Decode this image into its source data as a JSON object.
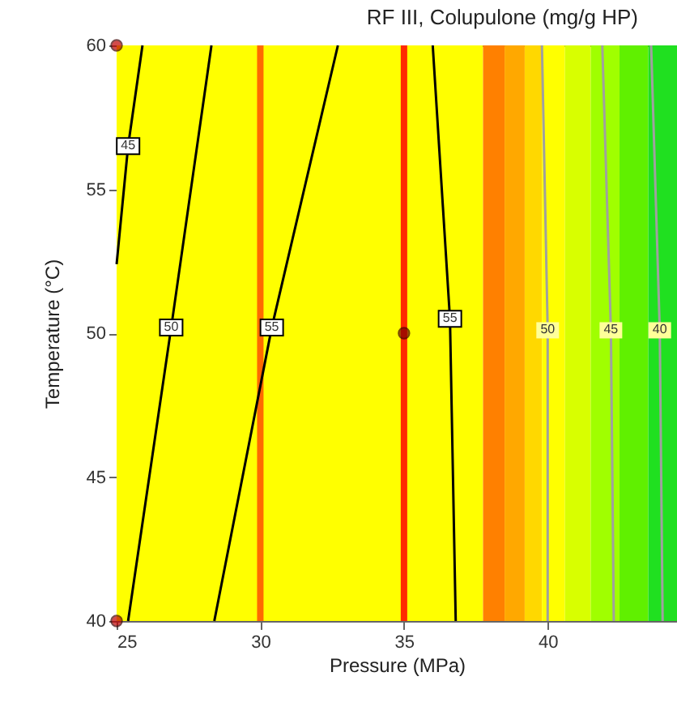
{
  "chart_data": {
    "type": "line",
    "title": "RF III, Colupulone (mg/g HP)",
    "xlabel": "Pressure (MPa)",
    "ylabel": "Temperature (°C)",
    "xlim": [
      25,
      44.5
    ],
    "xticks": [
      25,
      30,
      35,
      40
    ],
    "ylim": [
      40,
      60
    ],
    "yticks": [
      40,
      45,
      50,
      55,
      60
    ],
    "grid": false,
    "marker": "none",
    "line_style": "solid",
    "bands": [
      {
        "axis": "x",
        "from": 25,
        "to": 37.75,
        "color": "#ffff00"
      },
      {
        "axis": "x",
        "from": 37.75,
        "to": 38.5,
        "color": "#ff8000"
      },
      {
        "axis": "x",
        "from": 38.5,
        "to": 39.2,
        "color": "#ffa800"
      },
      {
        "axis": "x",
        "from": 39.2,
        "to": 39.8,
        "color": "#ffd800"
      },
      {
        "axis": "x",
        "from": 39.8,
        "to": 40.6,
        "color": "#ffff00"
      },
      {
        "axis": "x",
        "from": 40.6,
        "to": 41.5,
        "color": "#d8ff00"
      },
      {
        "axis": "x",
        "from": 41.5,
        "to": 42.5,
        "color": "#a0ff00"
      },
      {
        "axis": "x",
        "from": 42.5,
        "to": 43.5,
        "color": "#60f000"
      },
      {
        "axis": "x",
        "from": 43.5,
        "to": 44.5,
        "color": "#20e020"
      }
    ],
    "ref_lines": [
      {
        "axis": "x",
        "value": 30,
        "color": "#ff6a00"
      },
      {
        "axis": "x",
        "value": 35,
        "color": "#ff2a00"
      }
    ],
    "series": [
      {
        "name": "45",
        "color": "#000000",
        "x": [
          25,
          25.4,
          25.9
        ],
        "values": [
          52.4,
          56.5,
          60
        ]
      },
      {
        "name": "50",
        "color": "#000000",
        "x": [
          25.4,
          26.9,
          28.3
        ],
        "values": [
          40,
          50.2,
          60
        ]
      },
      {
        "name": "55",
        "color": "#000000",
        "x": [
          28.4,
          30.4,
          32.7
        ],
        "values": [
          40,
          50.2,
          60
        ]
      },
      {
        "name": "55",
        "color": "#000000",
        "x": [
          36.8,
          36.6,
          36.0
        ],
        "values": [
          40,
          50.5,
          60
        ]
      },
      {
        "name": "50",
        "color": "#a0a0a0",
        "x": [
          40.0,
          40.0,
          39.8
        ],
        "values": [
          40,
          50.1,
          60
        ]
      },
      {
        "name": "45",
        "color": "#a0a0a0",
        "x": [
          42.3,
          42.2,
          41.9
        ],
        "values": [
          40,
          50.1,
          60
        ]
      },
      {
        "name": "40",
        "color": "#a0a0a0",
        "x": [
          44.0,
          43.9,
          43.6
        ],
        "values": [
          40,
          50.1,
          60
        ]
      },
      {
        "type": "scatter",
        "marker": "circle",
        "colors": [
          "#c00000",
          "#c00000",
          "#800000"
        ],
        "x": [
          25,
          25,
          35
        ],
        "values": [
          60,
          40,
          50
        ]
      }
    ]
  }
}
